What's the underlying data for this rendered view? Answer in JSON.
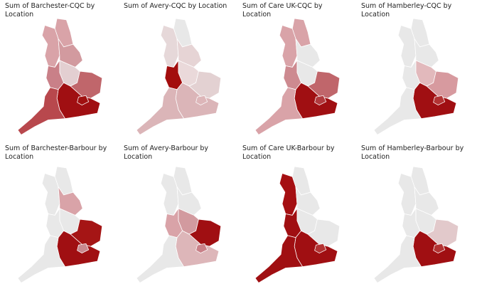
{
  "maps": [
    {
      "title": "Sum of Barchester-CQC by Location",
      "region_colors": [
        "#d9a3a8",
        "#d9a3a8",
        "#d29a9f",
        "#e3cfd1",
        "#c98088",
        "#c0666b",
        "#a01010",
        "#a00f12",
        "#b8484d"
      ]
    },
    {
      "title": "Sum of Avery-CQC by Location",
      "region_colors": [
        "#e8e8e8",
        "#e6d8d9",
        "#e6d4d5",
        "#ead9da",
        "#a30d0d",
        "#e3d1d2",
        "#ddb6b9",
        "#dbb5b8",
        "#dbb5b8"
      ]
    },
    {
      "title": "Sum of Care UK-CQC by Location",
      "region_colors": [
        "#d9a3a8",
        "#d9a3a8",
        "#e8e8e8",
        "#e8e8e8",
        "#cd8a90",
        "#c0666b",
        "#b13a3e",
        "#a00f12",
        "#d9a3a8"
      ]
    },
    {
      "title": "Sum of Hamberley-CQC by Location",
      "region_colors": [
        "#e8e8e8",
        "#e8e8e8",
        "#e8e8e8",
        "#e2b9bc",
        "#e8e8e8",
        "#d79a9f",
        "#b33333",
        "#a00f12",
        "#e8e8e8"
      ]
    },
    {
      "title": "Sum of Barchester-Barbour by Location",
      "region_colors": [
        "#e8e8e8",
        "#e8e8e8",
        "#d9a3a8",
        "#e8e8e8",
        "#e8e8e8",
        "#a51515",
        "#c98a90",
        "#a00f12",
        "#e8e8e8"
      ]
    },
    {
      "title": "Sum of Avery-Barbour by Location",
      "region_colors": [
        "#e8e8e8",
        "#e8e8e8",
        "#e8e8e8",
        "#d29a9f",
        "#d9a3a8",
        "#a00f12",
        "#c98088",
        "#ddb6b9",
        "#e8e8e8"
      ]
    },
    {
      "title": "Sum of Care UK-Barbour by Location",
      "region_colors": [
        "#e8e8e8",
        "#a50f12",
        "#e8e8e8",
        "#e8e8e8",
        "#a00f12",
        "#e8e8e8",
        "#b33333",
        "#a00f12",
        "#a00f12"
      ]
    },
    {
      "title": "Sum of Hamberley-Barbour by Location",
      "region_colors": [
        "#e8e8e8",
        "#e8e8e8",
        "#e8e8e8",
        "#e8e8e8",
        "#e8e8e8",
        "#e2c9cb",
        "#b33333",
        "#a00f12",
        "#e8e8e8"
      ]
    }
  ]
}
